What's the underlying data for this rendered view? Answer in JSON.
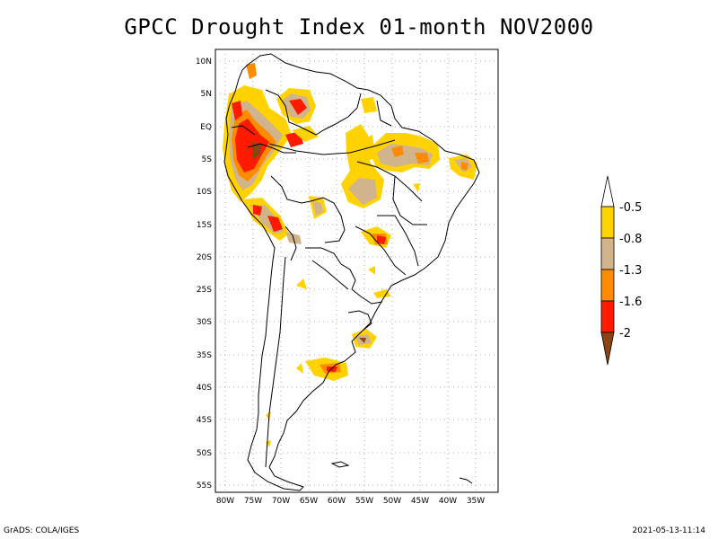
{
  "title": "GPCC Drought Index 01-month NOV2000",
  "footer": {
    "left": "GrADS: COLA/IGES",
    "right": "2021-05-13-11:14"
  },
  "axes": {
    "lat_labels": [
      "10N",
      "5N",
      "EQ",
      "5S",
      "10S",
      "15S",
      "20S",
      "25S",
      "30S",
      "35S",
      "40S",
      "45S",
      "50S",
      "55S"
    ],
    "lon_labels": [
      "80W",
      "75W",
      "70W",
      "65W",
      "60W",
      "55W",
      "50W",
      "45W",
      "40W",
      "35W"
    ]
  },
  "legend": {
    "labels": [
      "-0.5",
      "-0.8",
      "-1.3",
      "-1.6",
      "-2"
    ],
    "colors": [
      "#ffffff",
      "#ffd200",
      "#d2b48c",
      "#ff8c00",
      "#ff1a00",
      "#8b4513"
    ]
  }
}
